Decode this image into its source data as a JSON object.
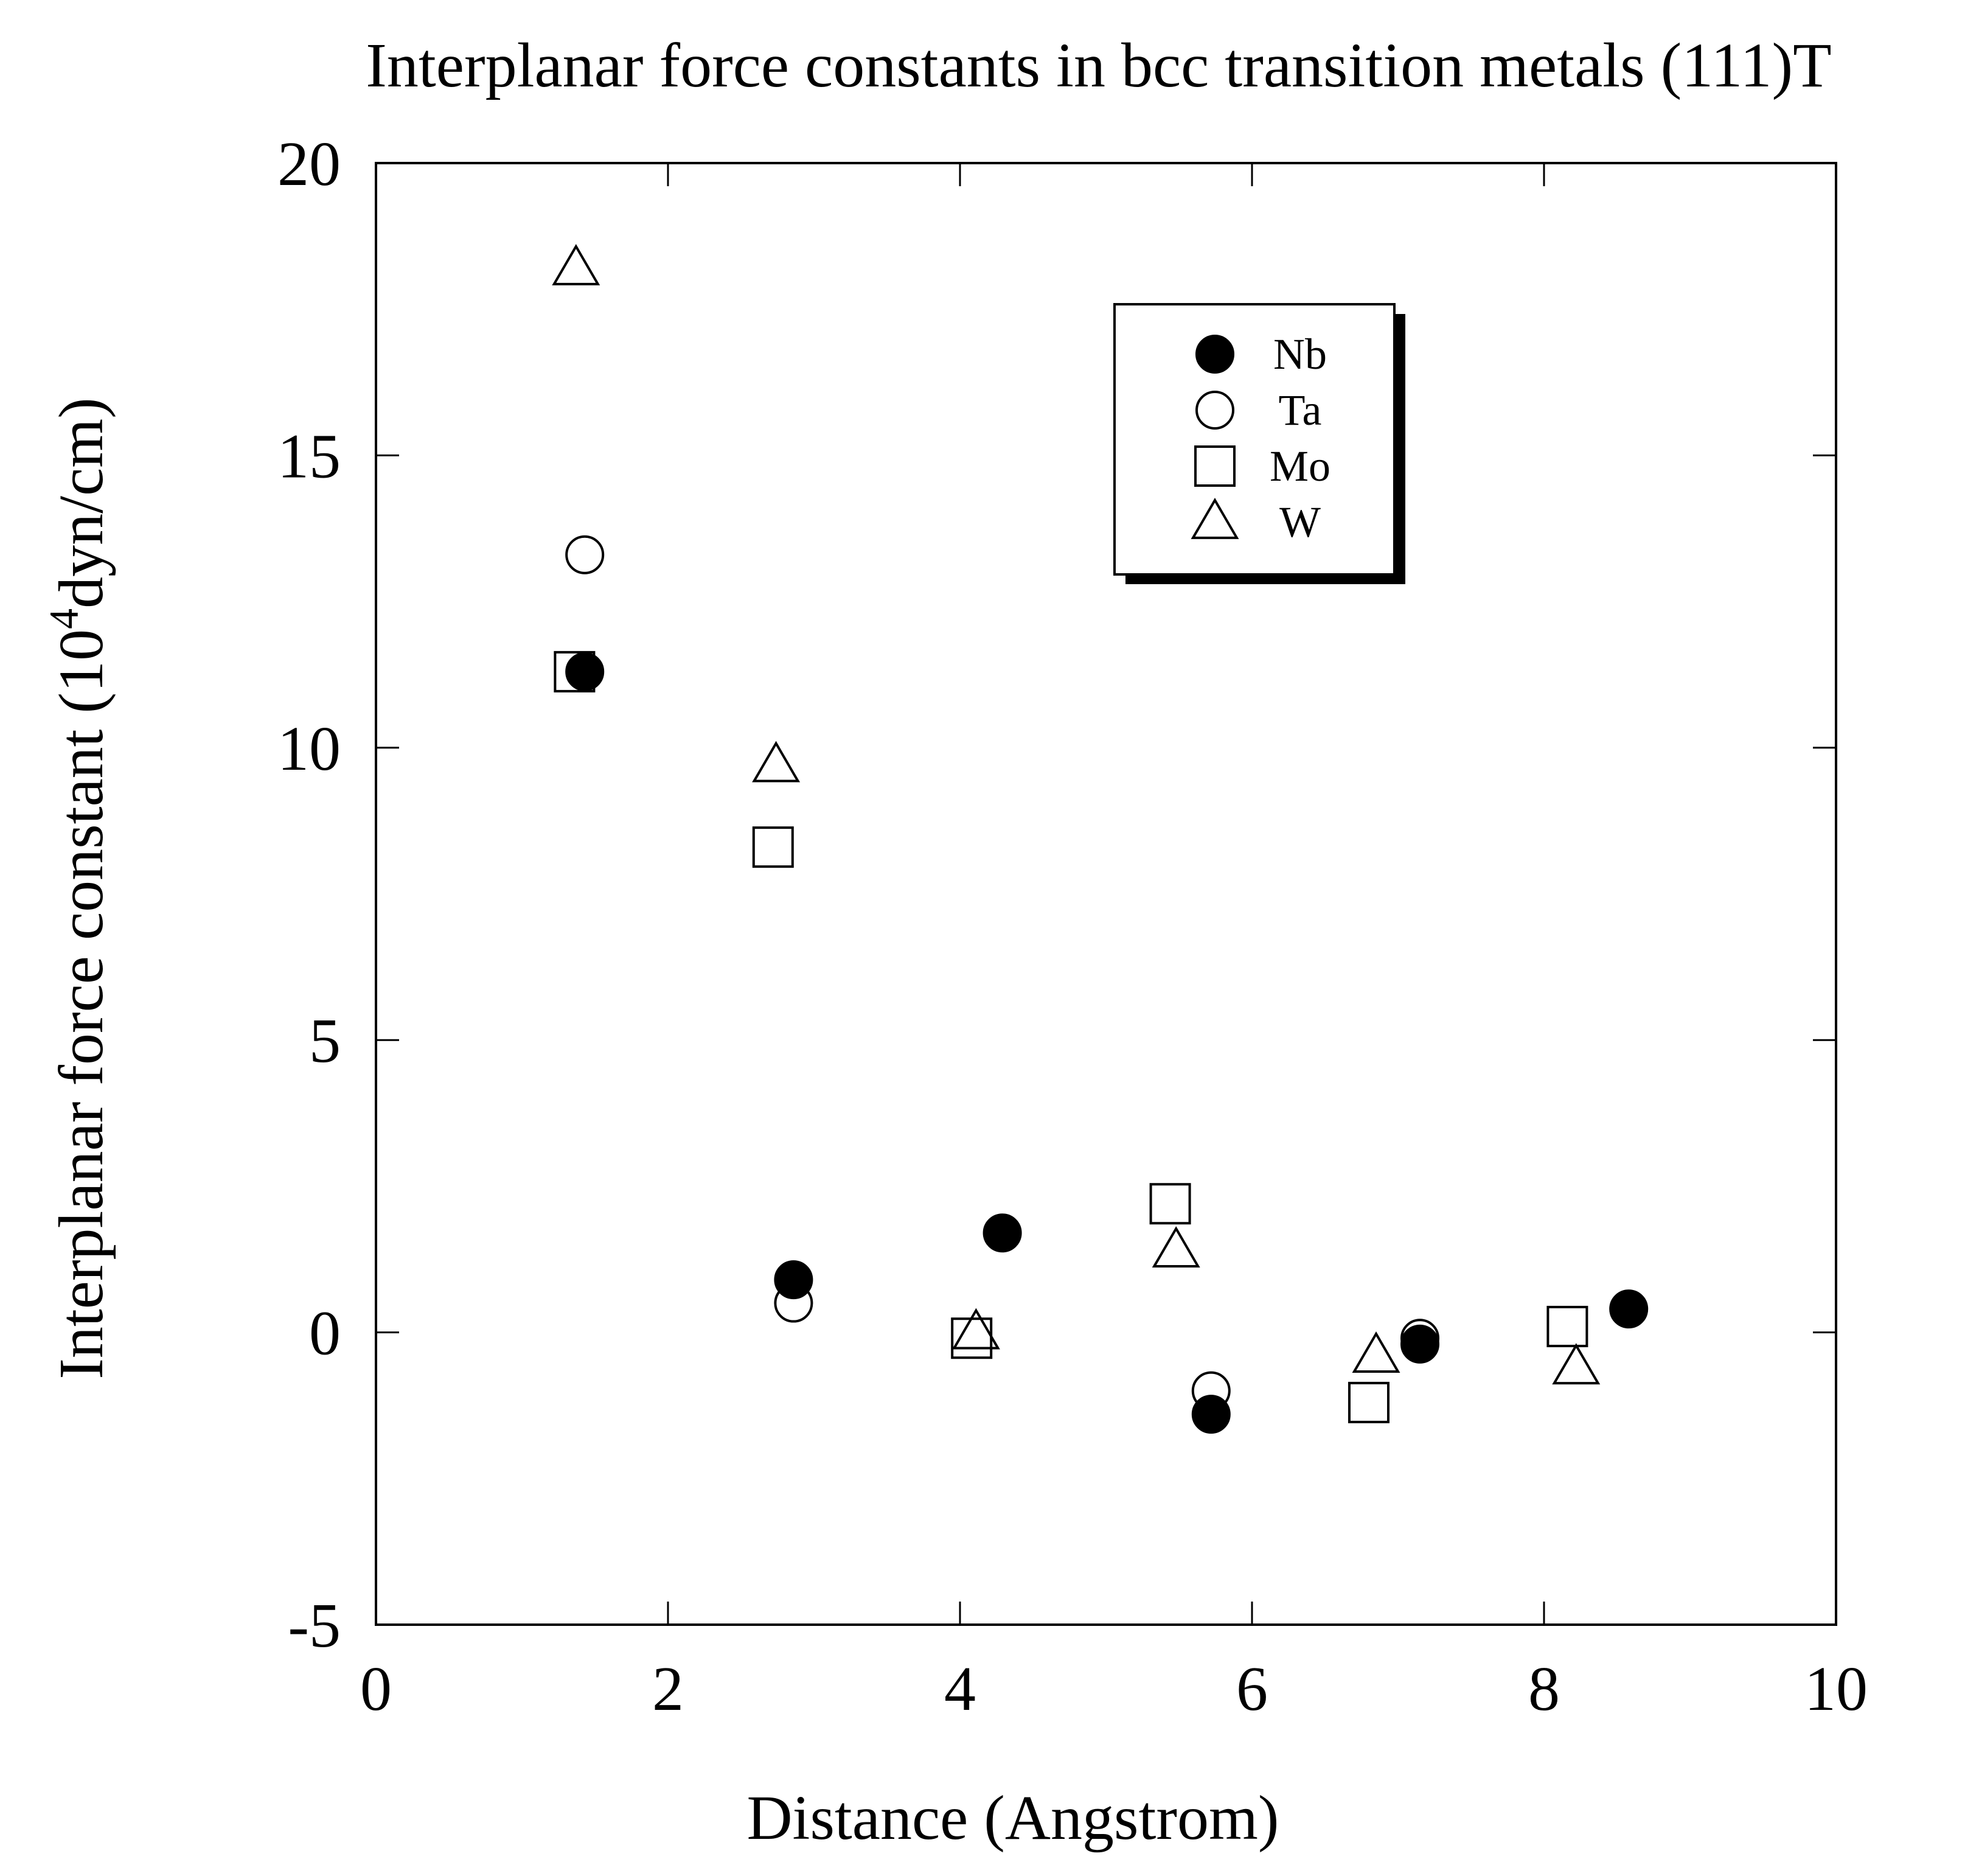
{
  "chart_data": {
    "type": "scatter",
    "title": "Interplanar force constants in bcc transition metals (111)T",
    "xlabel": "Distance (Angstrom)",
    "ylabel_main": "Interplanar force constant (10",
    "ylabel_sup": "4",
    "ylabel_tail": "dyn/cm)",
    "xlim": [
      0,
      10
    ],
    "ylim": [
      -5,
      20
    ],
    "xticks": [
      0,
      2,
      4,
      6,
      8,
      10
    ],
    "yticks": [
      -5,
      0,
      5,
      10,
      15,
      20
    ],
    "xtick_labels": [
      "0",
      "2",
      "4",
      "6",
      "8",
      "10"
    ],
    "ytick_labels": [
      "-5",
      "0",
      "5",
      "10",
      "15",
      "20"
    ],
    "grid": false,
    "legend_position": "top-right",
    "series": [
      {
        "name": "Nb",
        "marker": "filled-circle",
        "x": [
          1.43,
          2.86,
          4.29,
          5.72,
          7.15,
          8.58
        ],
        "y": [
          11.3,
          0.9,
          1.7,
          -1.4,
          -0.2,
          0.4
        ]
      },
      {
        "name": "Ta",
        "marker": "open-circle",
        "x": [
          1.43,
          2.86,
          5.72,
          7.15
        ],
        "y": [
          13.3,
          0.5,
          -1.0,
          -0.1
        ]
      },
      {
        "name": "Mo",
        "marker": "open-square",
        "x": [
          1.36,
          2.72,
          4.08,
          5.44,
          6.8,
          8.16
        ],
        "y": [
          11.3,
          8.3,
          -0.1,
          2.2,
          -1.2,
          0.1
        ]
      },
      {
        "name": "W",
        "marker": "open-triangle",
        "x": [
          1.37,
          2.74,
          4.11,
          5.48,
          6.85,
          8.22
        ],
        "y": [
          18.2,
          9.7,
          0.0,
          1.4,
          -0.4,
          -0.6
        ]
      }
    ]
  }
}
